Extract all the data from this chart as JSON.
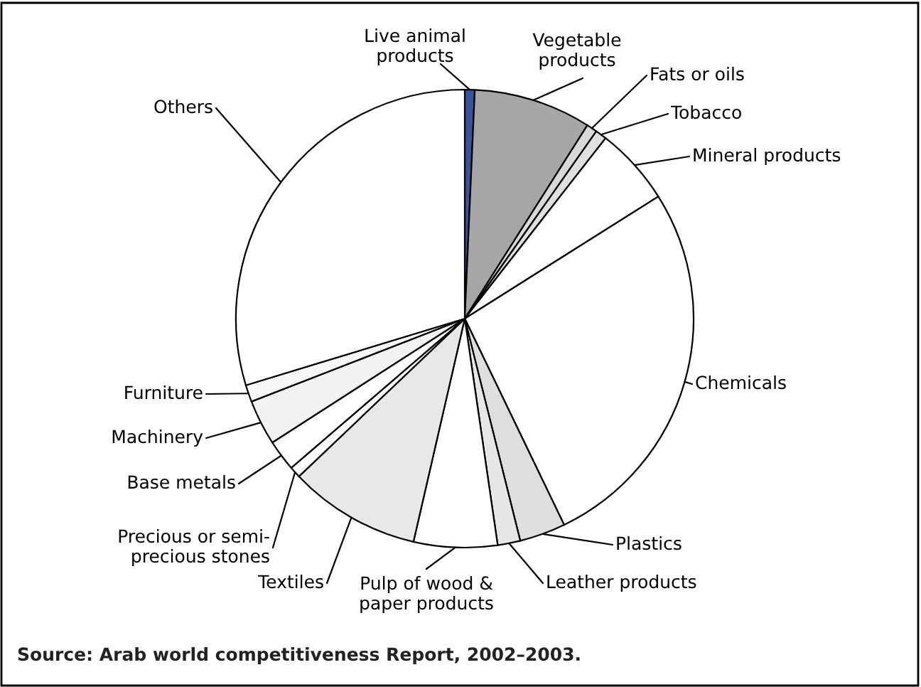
{
  "chart_data": {
    "type": "pie",
    "categories": [
      "Live animal products",
      "Vegetable products",
      "Fats or oils",
      "Tobacco",
      "Mineral products",
      "Chemicals",
      "Plastics",
      "Leather products",
      "Pulp of wood & paper products",
      "Textiles",
      "Precious or semi-precious stones",
      "Base metals",
      "Machinery",
      "Furniture",
      "Others"
    ],
    "values": [
      0.7,
      8.3,
      0.75,
      0.8,
      5.5,
      26.8,
      3.25,
      1.6,
      5.9,
      9.3,
      0.8,
      2.2,
      3.2,
      1.2,
      29.7
    ],
    "colors": [
      "#3a539b",
      "#a6a6a6",
      "#d9d9d9",
      "#e0e0e0",
      "#ffffff",
      "#ffffff",
      "#dedede",
      "#e6e6e6",
      "#ffffff",
      "#e8e8e8",
      "#ffffff",
      "#ffffff",
      "#f2f2f2",
      "#f7f7f7",
      "#ffffff"
    ],
    "annotations": [
      "Source: Arab world competitiveness Report, 2002–2003."
    ]
  }
}
